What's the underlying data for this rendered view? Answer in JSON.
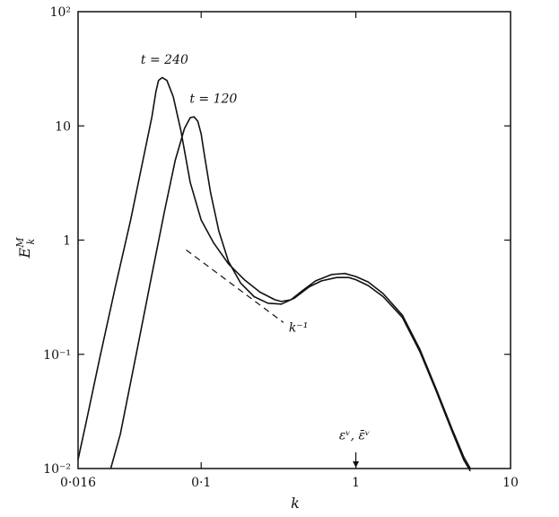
{
  "chart_data": {
    "type": "line",
    "title": "",
    "xlabel": "k",
    "ylabel": "E_k^M",
    "x_scale": "log",
    "y_scale": "log",
    "xlim": [
      0.016,
      10
    ],
    "ylim": [
      0.01,
      100
    ],
    "x_ticks": [
      {
        "value": 0.016,
        "label": "0·016"
      },
      {
        "value": 0.1,
        "label": "0·1"
      },
      {
        "value": 1,
        "label": "1"
      },
      {
        "value": 10,
        "label": "10"
      }
    ],
    "y_ticks": [
      {
        "value": 0.01,
        "label": "10⁻²"
      },
      {
        "value": 0.1,
        "label": "10⁻¹"
      },
      {
        "value": 1,
        "label": "1"
      },
      {
        "value": 10,
        "label": "10"
      },
      {
        "value": 100,
        "label": "10²"
      }
    ],
    "grid": false,
    "series": [
      {
        "name": "t = 240",
        "x": [
          0.016,
          0.018,
          0.022,
          0.028,
          0.035,
          0.042,
          0.048,
          0.051,
          0.053,
          0.056,
          0.06,
          0.066,
          0.074,
          0.085,
          0.1,
          0.12,
          0.15,
          0.19,
          0.24,
          0.3,
          0.33,
          0.38,
          0.45,
          0.55,
          0.7,
          0.85,
          1.0,
          1.2,
          1.5,
          2.0,
          2.6,
          3.3,
          4.2,
          5.0,
          5.5
        ],
        "y": [
          0.012,
          0.025,
          0.09,
          0.4,
          1.5,
          5.0,
          12.0,
          20.0,
          25.0,
          26.5,
          25.0,
          18.0,
          9.0,
          3.2,
          1.5,
          0.95,
          0.62,
          0.45,
          0.35,
          0.3,
          0.29,
          0.3,
          0.36,
          0.44,
          0.5,
          0.51,
          0.48,
          0.43,
          0.34,
          0.22,
          0.11,
          0.05,
          0.022,
          0.0125,
          0.01
        ]
      },
      {
        "name": "t = 120",
        "x": [
          0.026,
          0.03,
          0.038,
          0.048,
          0.058,
          0.068,
          0.078,
          0.085,
          0.09,
          0.095,
          0.1,
          0.105,
          0.115,
          0.13,
          0.15,
          0.18,
          0.22,
          0.27,
          0.33,
          0.4,
          0.5,
          0.6,
          0.75,
          0.9,
          1.0,
          1.2,
          1.5,
          2.0,
          2.6,
          3.3,
          4.2,
          5.0,
          5.5
        ],
        "y": [
          0.01,
          0.02,
          0.1,
          0.5,
          1.8,
          5.0,
          9.5,
          11.8,
          12.0,
          11.0,
          8.5,
          5.5,
          2.6,
          1.2,
          0.65,
          0.42,
          0.32,
          0.28,
          0.275,
          0.31,
          0.39,
          0.44,
          0.47,
          0.47,
          0.45,
          0.4,
          0.32,
          0.21,
          0.105,
          0.048,
          0.021,
          0.0118,
          0.0095
        ]
      }
    ],
    "reference_line": {
      "label": "k⁻¹",
      "x": [
        0.08,
        0.34
      ],
      "y": [
        0.82,
        0.19
      ]
    },
    "annotations": [
      {
        "text": "t = 240",
        "x": 0.058,
        "y": 35
      },
      {
        "text": "t = 120",
        "x": 0.12,
        "y": 16
      },
      {
        "text": "εᵛ, ε̄ᵛ",
        "x": 0.98,
        "y": 0.018
      }
    ],
    "arrow_marker": {
      "x": 1.0,
      "y_from": 0.012,
      "y_to": 0.01
    }
  }
}
